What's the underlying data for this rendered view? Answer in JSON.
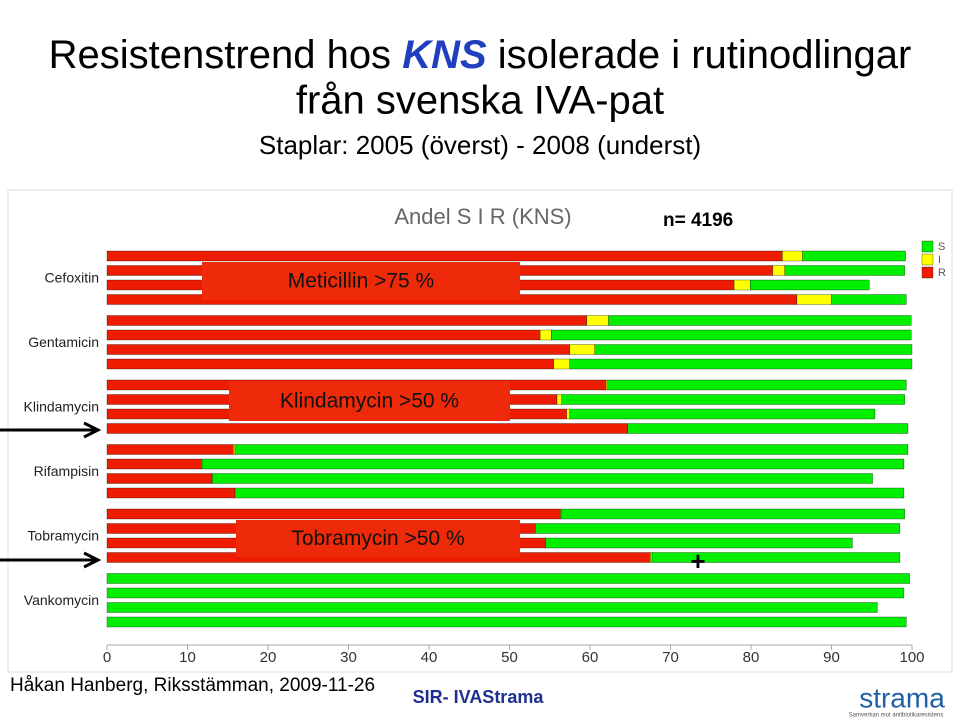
{
  "slide": {
    "title_parts": [
      "Resistenstrend hos",
      "KNS",
      "isolerade i rutinodlingar"
    ],
    "title_line2": "från svenska IVA-pat",
    "subtitle": "Staplar: 2005 (överst) - 2008 (underst)",
    "footer": "Håkan Hanberg, Riksstämman, 2009-11-26",
    "source": "SIR- IVAStrama",
    "logo": "strama",
    "logo_tagline": "Samverkan mot antibiotikaresistens"
  },
  "chart_data": {
    "type": "stacked-bar-horizontal",
    "title": "Andel S I R (KNS)",
    "n_label": "n= 4196",
    "categories": [
      "Cefoxitin",
      "Gentamicin",
      "Klindamycin",
      "Rifampisin",
      "Tobramycin",
      "Vankomycin"
    ],
    "series": [
      {
        "name": "R",
        "color": "#ee1c00",
        "values": [
          [
            83.9,
            82.7,
            77.9,
            85.7
          ],
          [
            59.6,
            53.8,
            57.5,
            55.5
          ],
          [
            62.0,
            55.9,
            57.1,
            64.7
          ],
          [
            15.7,
            11.7,
            13.0,
            15.9
          ],
          [
            56.3,
            53.2,
            54.5,
            67.5
          ],
          [
            0,
            0,
            0,
            0
          ]
        ]
      },
      {
        "name": "I",
        "color": "#ffff00",
        "values": [
          [
            2.5,
            1.5,
            2.0,
            4.3
          ],
          [
            2.7,
            1.4,
            3.1,
            2.0
          ],
          [
            0.2,
            0.6,
            0.4,
            0
          ],
          [
            0.2,
            0.1,
            0.1,
            0
          ],
          [
            0.1,
            0,
            0,
            0.2
          ],
          [
            0,
            0,
            0,
            0
          ]
        ]
      },
      {
        "name": "S",
        "color": "#00ee00",
        "values": [
          [
            12.8,
            14.9,
            14.8,
            9.3
          ],
          [
            37.6,
            44.7,
            39.4,
            42.5
          ],
          [
            37.1,
            42.6,
            37.9,
            34.8
          ],
          [
            83.6,
            87.2,
            82.0,
            83.1
          ],
          [
            42.7,
            45.3,
            38.1,
            30.8
          ],
          [
            99.7,
            99.0,
            95.7,
            99.3
          ]
        ]
      }
    ],
    "annotations": [
      "Meticillin >75 %",
      "Klindamycin >50 %",
      "Tobramycin >50 %"
    ],
    "marker": "+",
    "xlim": [
      0,
      100
    ],
    "xticks": [
      0,
      10,
      20,
      30,
      40,
      50,
      60,
      70,
      80,
      90,
      100
    ]
  }
}
